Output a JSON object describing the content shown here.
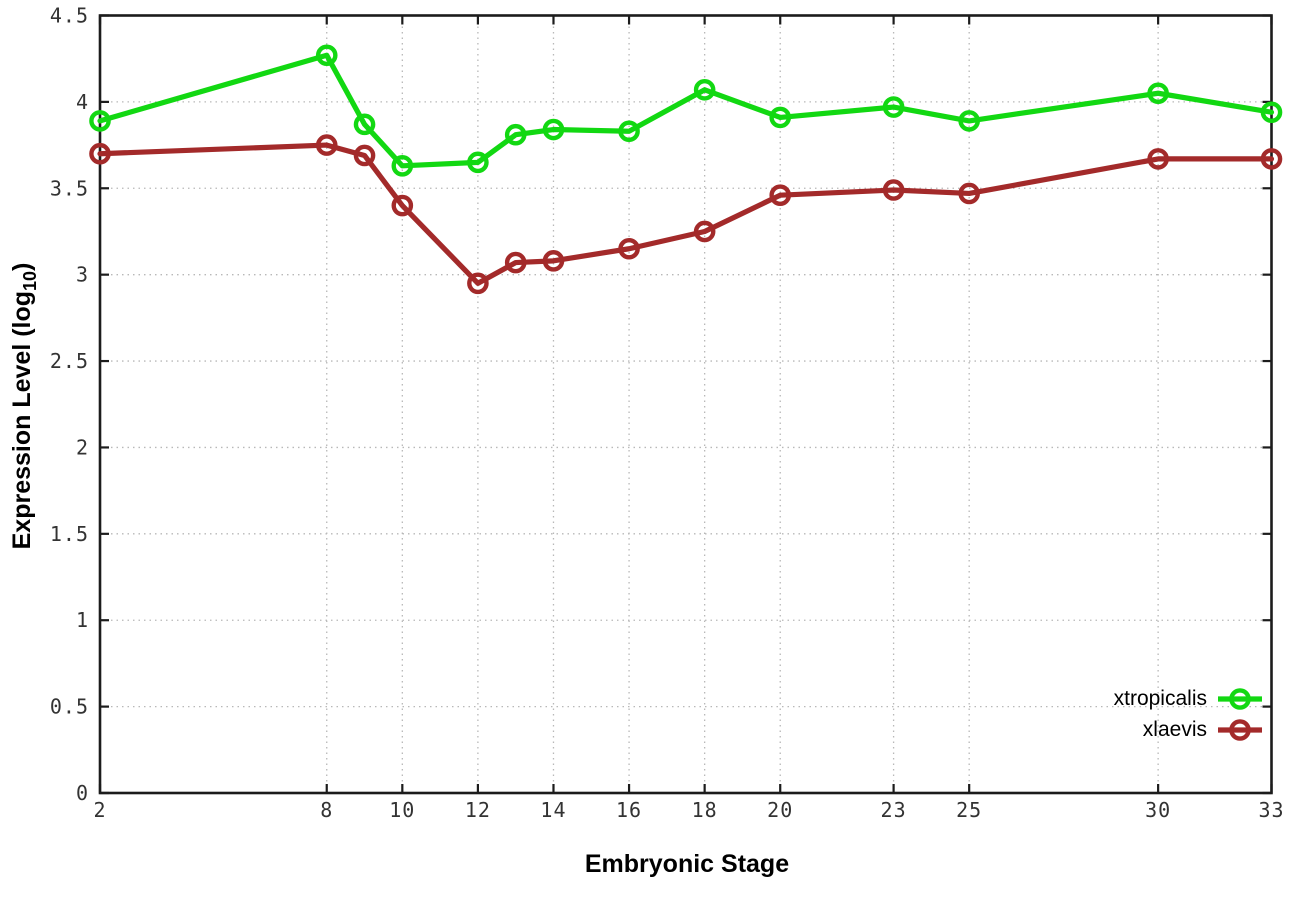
{
  "chart_data": {
    "type": "line",
    "title": "",
    "xlabel": "Embryonic Stage",
    "ylabel": "Expression Level (log10)",
    "ylabel_parts": {
      "main": "Expression Level (log",
      "sub": "10",
      "end": ")"
    },
    "x": [
      2,
      8,
      9,
      10,
      12,
      13,
      14,
      16,
      18,
      20,
      23,
      25,
      30,
      33
    ],
    "series": [
      {
        "name": "xtropicalis",
        "color": "#12d812",
        "values": [
          3.89,
          4.27,
          3.87,
          3.63,
          3.65,
          3.81,
          3.84,
          3.83,
          4.07,
          3.91,
          3.97,
          3.89,
          4.05,
          3.94
        ]
      },
      {
        "name": "xlaevis",
        "color": "#a32a2a",
        "values": [
          3.7,
          3.75,
          3.69,
          3.4,
          2.95,
          3.07,
          3.08,
          3.15,
          3.25,
          3.46,
          3.49,
          3.47,
          3.67,
          3.67
        ]
      }
    ],
    "xlim": [
      2,
      33
    ],
    "ylim": [
      0,
      4.5
    ],
    "xticks": [
      2,
      8,
      10,
      12,
      14,
      16,
      18,
      20,
      23,
      25,
      30,
      33
    ],
    "xtick_labels": [
      "2",
      "8",
      "10",
      "12",
      "14",
      "16",
      "18",
      "20",
      "23",
      "25",
      "30",
      "33"
    ],
    "yticks": [
      0,
      0.5,
      1,
      1.5,
      2,
      2.5,
      3,
      3.5,
      4,
      4.5
    ],
    "ytick_labels": [
      "0",
      "0.5",
      "1",
      "1.5",
      "2",
      "2.5",
      "3",
      "3.5",
      "4",
      "4.5"
    ],
    "grid": true,
    "legend_position": "inside-bottom-right",
    "colors": {
      "grid": "#b8b8b8",
      "border": "#1c1c1c",
      "tick_text": "#333333",
      "background": "#ffffff"
    }
  }
}
